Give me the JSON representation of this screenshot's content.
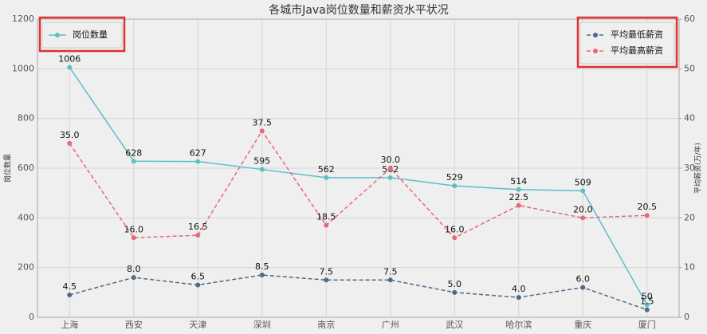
{
  "chart_data": {
    "type": "line",
    "title": "各城市Java岗位数量和薪资水平状况",
    "ylabel": "岗位数量",
    "y2label": "平均薪资(万/年)",
    "categories": [
      "上海",
      "西安",
      "天津",
      "深圳",
      "南京",
      "广州",
      "武汉",
      "哈尔滨",
      "重庆",
      "厦门"
    ],
    "ylim": [
      0,
      1200
    ],
    "yticks": [
      0,
      200,
      400,
      600,
      800,
      1000,
      1200
    ],
    "y2lim": [
      0,
      60
    ],
    "y2ticks": [
      0,
      10,
      20,
      30,
      40,
      50,
      60
    ],
    "grid": true,
    "series": [
      {
        "name": "岗位数量",
        "color": "#5bbfc9",
        "dash": false,
        "legend": "upper left",
        "values": [
          1006,
          628,
          627,
          595,
          562,
          562,
          529,
          514,
          509,
          50
        ]
      },
      {
        "name": "平均最低薪资",
        "color": "#4e6a86",
        "dash": true,
        "axis": "y2",
        "legend": "upper right",
        "values": [
          4.5,
          8,
          6.5,
          8.5,
          7.5,
          7.5,
          5,
          4,
          6,
          1.5
        ],
        "value_labels": [
          "4.5",
          "8.0",
          "6.5",
          "8.5",
          "7.5",
          "7.5",
          "5.0",
          "4.0",
          "6.0",
          "1.5"
        ]
      },
      {
        "name": "平均最高薪资",
        "color": "#e8687b",
        "dash": true,
        "axis": "y2",
        "legend": "upper right",
        "values": [
          35,
          16,
          16.5,
          37.5,
          18.5,
          30,
          16,
          22.5,
          20,
          20.5
        ],
        "value_labels": [
          "35.0",
          "16.0",
          "16.5",
          "37.5",
          "18.5",
          "30.0",
          "16.0",
          "22.5",
          "20.0",
          "20.5"
        ]
      }
    ]
  }
}
